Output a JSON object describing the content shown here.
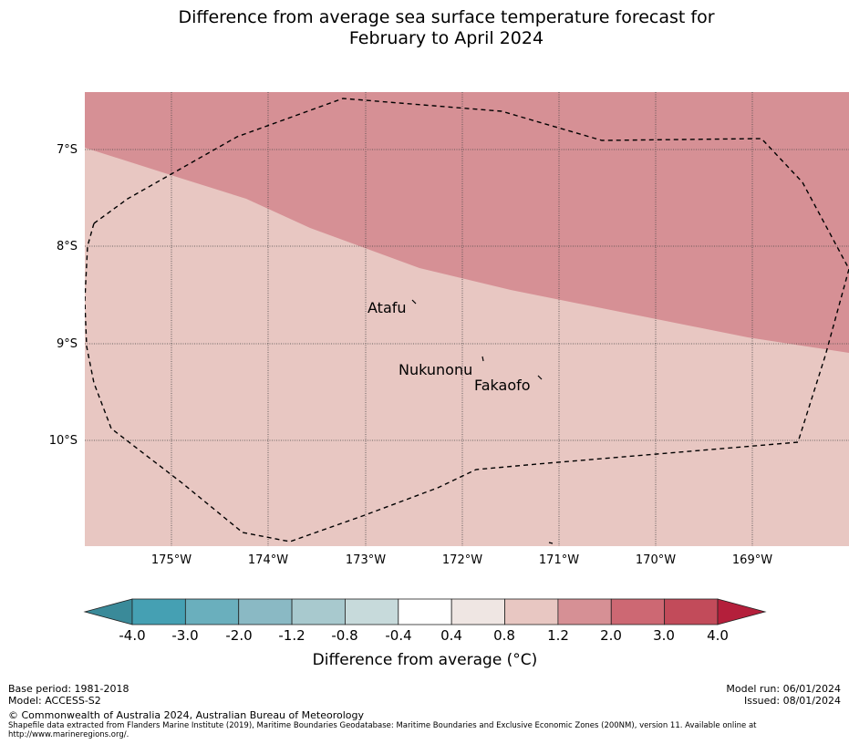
{
  "title": {
    "line1": "Difference from average sea surface temperature forecast for",
    "line2": "February to April 2024"
  },
  "map": {
    "lat_ticks": [
      "7°S",
      "8°S",
      "9°S",
      "10°S"
    ],
    "lon_ticks": [
      "175°W",
      "174°W",
      "173°W",
      "172°W",
      "171°W",
      "170°W",
      "169°W"
    ],
    "places": [
      {
        "name": "Atafu"
      },
      {
        "name": "Nukunonu"
      },
      {
        "name": "Fakaofo"
      }
    ],
    "region_colors": {
      "1.2_to_2.0": "#d69095",
      "0.8_to_1.2": "#e8c7c2"
    },
    "boundary_style": "dashed"
  },
  "colorbar": {
    "ticks": [
      "-4.0",
      "-3.0",
      "-2.0",
      "-1.2",
      "-0.8",
      "-0.4",
      "0.4",
      "0.8",
      "1.2",
      "2.0",
      "3.0",
      "4.0"
    ],
    "under_color": "#3a8a99",
    "over_color": "#b41f3b",
    "colors": [
      "#45a0b3",
      "#6aafbd",
      "#8ab9c4",
      "#a8c9ce",
      "#c7dadb",
      "#ffffff",
      "#efe6e3",
      "#e8c7c2",
      "#d69095",
      "#cd6873",
      "#c24b5a"
    ],
    "title": "Difference from average (°C)"
  },
  "footer": {
    "base_period": "Base period: 1981-2018",
    "model": "Model: ACCESS-S2",
    "model_run": "Model run: 06/01/2024",
    "issued": "Issued: 08/01/2024",
    "copyright": "© Commonwealth of Australia 2024, Australian Bureau of Meteorology",
    "shapefile_line1": "Shapefile data extracted from Flanders Marine Institute (2019), Maritime Boundaries Geodatabase: Maritime Boundaries and Exclusive Economic Zones (200NM), version 11. Available online at",
    "shapefile_line2": "http://www.marineregions.org/."
  }
}
